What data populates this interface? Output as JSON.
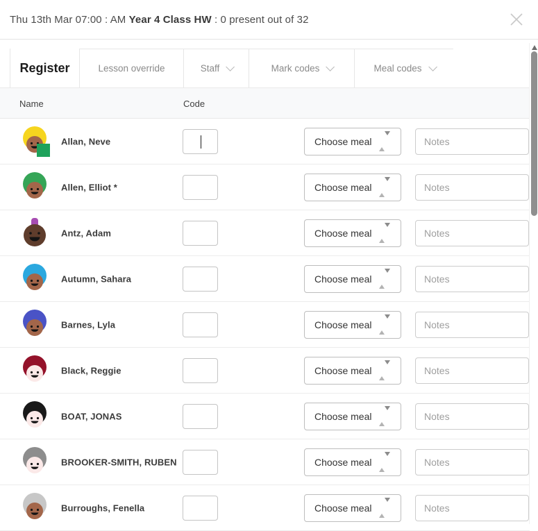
{
  "header": {
    "date_prefix": "Thu 13th Mar 07:00 : AM ",
    "class_name": "Year 4 Class HW",
    "suffix": " : 0 present out of 32"
  },
  "tabs": [
    {
      "label": "Register",
      "active": true,
      "chevron": false
    },
    {
      "label": "Lesson override",
      "active": false,
      "chevron": false
    },
    {
      "label": "Staff",
      "active": false,
      "chevron": true
    },
    {
      "label": "Mark codes",
      "active": false,
      "chevron": true
    },
    {
      "label": "Meal codes",
      "active": false,
      "chevron": true
    }
  ],
  "table": {
    "columns": {
      "name": "Name",
      "code": "Code"
    }
  },
  "row_controls": {
    "meal_select_label": "Choose meal",
    "notes_placeholder": "Notes",
    "code_value": ""
  },
  "students": [
    {
      "name": "Allan, Neve",
      "focused": true,
      "avatar": {
        "style": "hair",
        "hair": "#f6d51f",
        "face": "#a3664a",
        "badge": "#1ea25b"
      }
    },
    {
      "name": "Allen, Elliot *",
      "focused": false,
      "avatar": {
        "style": "hair",
        "hair": "#35a557",
        "face": "#a3664a"
      }
    },
    {
      "name": "Antz, Adam",
      "focused": false,
      "avatar": {
        "style": "mohawk",
        "hair": "#a74cb2",
        "face": "#5f3d2c"
      }
    },
    {
      "name": "Autumn, Sahara",
      "focused": false,
      "avatar": {
        "style": "hair",
        "hair": "#2ba8df",
        "face": "#a3664a"
      }
    },
    {
      "name": "Barnes, Lyla",
      "focused": false,
      "avatar": {
        "style": "hair",
        "hair": "#4a53c6",
        "face": "#a3664a"
      }
    },
    {
      "name": "Black, Reggie",
      "focused": false,
      "avatar": {
        "style": "hair",
        "hair": "#94122a",
        "face": "#fbe9e8"
      }
    },
    {
      "name": "BOAT, JONAS",
      "focused": false,
      "avatar": {
        "style": "hair",
        "hair": "#191919",
        "face": "#fbe9e8"
      }
    },
    {
      "name": "BROOKER-SMITH, RUBEN",
      "focused": false,
      "avatar": {
        "style": "hair",
        "hair": "#8d8d8d",
        "face": "#fbe9e8"
      }
    },
    {
      "name": "Burroughs, Fenella",
      "focused": false,
      "avatar": {
        "style": "hair",
        "hair": "#c7c7c7",
        "face": "#a3664a"
      }
    }
  ],
  "scrollbar": {
    "present": true
  },
  "colors": {
    "header_border": "#e4e4e4",
    "table_header_bg": "#f8f9fa",
    "row_border": "#ececec",
    "scroll_thumb": "#8f8f8f",
    "close_icon": "#c9c9c9",
    "inactive_tab_text": "#8a8a8a",
    "active_tab_text": "#1c1c1c",
    "badge_green": "#1ea25b"
  }
}
